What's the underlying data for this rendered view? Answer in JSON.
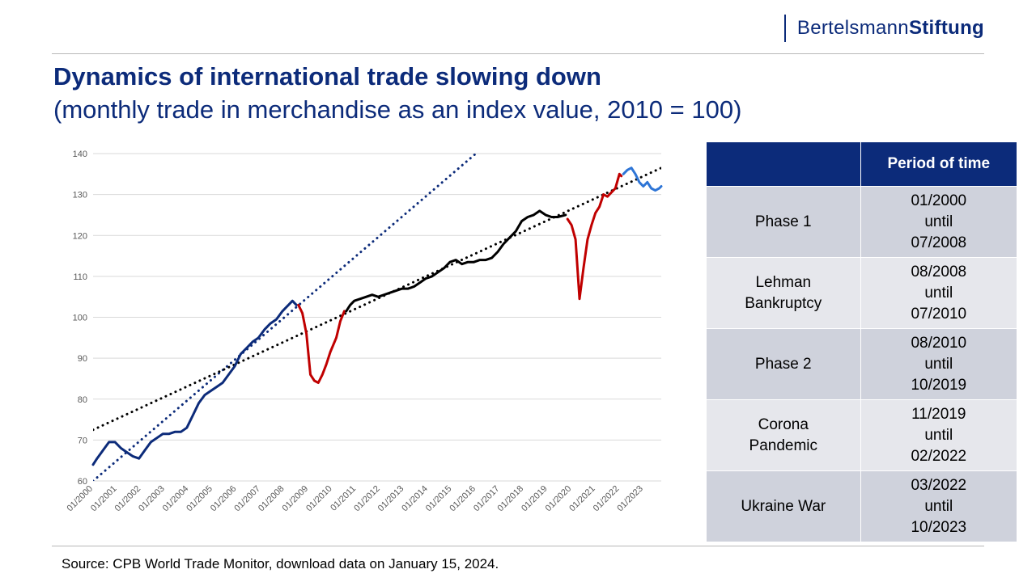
{
  "brand": {
    "part1": "Bertelsmann",
    "part2": "Stiftung"
  },
  "title": "Dynamics of international trade slowing down",
  "subtitle": "(monthly trade in merchandise as an index value, 2010 = 100)",
  "source": "Source: CPB World Trade Monitor, download data on January 15, 2024.",
  "table": {
    "header_blank": "",
    "header_period": "Period of time",
    "rows": [
      {
        "label": "Phase 1",
        "period_start": "01/2000",
        "until": "until",
        "period_end": "07/2008"
      },
      {
        "label": "Lehman Bankruptcy",
        "period_start": "08/2008",
        "until": "until",
        "period_end": "07/2010"
      },
      {
        "label": "Phase 2",
        "period_start": "08/2010",
        "until": "until",
        "period_end": "10/2019"
      },
      {
        "label": "Corona Pandemic",
        "period_start": "11/2019",
        "until": "until",
        "period_end": "02/2022"
      },
      {
        "label": "Ukraine War",
        "period_start": "03/2022",
        "until": "until",
        "period_end": "10/2023"
      }
    ]
  },
  "chart_data": {
    "type": "line",
    "title": "",
    "xlabel": "",
    "ylabel": "",
    "ylim": [
      60,
      140
    ],
    "yticks": [
      60,
      70,
      80,
      90,
      100,
      110,
      120,
      130,
      140
    ],
    "x_tick_labels": [
      "01/2000",
      "01/2001",
      "01/2002",
      "01/2003",
      "01/2004",
      "01/2005",
      "01/2006",
      "01/2007",
      "01/2008",
      "01/2009",
      "01/2010",
      "01/2011",
      "01/2012",
      "01/2013",
      "01/2014",
      "01/2015",
      "01/2016",
      "01/2017",
      "01/2018",
      "01/2019",
      "01/2020",
      "01/2021",
      "01/2022",
      "01/2023"
    ],
    "x_range": [
      "2000-01",
      "2023-10"
    ],
    "grid": true,
    "colors": {
      "phase1": "#0c2b7a",
      "lehman": "#c00000",
      "phase2": "#000000",
      "corona": "#c00000",
      "ukraine": "#2e75d6"
    },
    "series": [
      {
        "color_key": "phase1",
        "points": [
          [
            "2000-01",
            64
          ],
          [
            "2000-03",
            65.5
          ],
          [
            "2000-06",
            67.5
          ],
          [
            "2000-09",
            69.5
          ],
          [
            "2000-12",
            69.5
          ],
          [
            "2001-03",
            68
          ],
          [
            "2001-06",
            67
          ],
          [
            "2001-09",
            66
          ],
          [
            "2001-12",
            65.5
          ],
          [
            "2002-03",
            67.5
          ],
          [
            "2002-06",
            69.5
          ],
          [
            "2002-09",
            70.5
          ],
          [
            "2002-12",
            71.5
          ],
          [
            "2003-03",
            71.5
          ],
          [
            "2003-06",
            72
          ],
          [
            "2003-09",
            72
          ],
          [
            "2003-12",
            73
          ],
          [
            "2004-03",
            76
          ],
          [
            "2004-06",
            79
          ],
          [
            "2004-09",
            81
          ],
          [
            "2004-12",
            82
          ],
          [
            "2005-03",
            83
          ],
          [
            "2005-06",
            84
          ],
          [
            "2005-09",
            86
          ],
          [
            "2005-12",
            88
          ],
          [
            "2006-03",
            91
          ],
          [
            "2006-06",
            92.5
          ],
          [
            "2006-09",
            94
          ],
          [
            "2006-12",
            95
          ],
          [
            "2007-03",
            97
          ],
          [
            "2007-06",
            98.5
          ],
          [
            "2007-09",
            99.5
          ],
          [
            "2007-12",
            101.5
          ],
          [
            "2008-03",
            103
          ],
          [
            "2008-05",
            104
          ],
          [
            "2008-07",
            103
          ]
        ]
      },
      {
        "color_key": "lehman",
        "points": [
          [
            "2008-08",
            103
          ],
          [
            "2008-10",
            101
          ],
          [
            "2008-12",
            96
          ],
          [
            "2009-02",
            86
          ],
          [
            "2009-04",
            84.5
          ],
          [
            "2009-06",
            84
          ],
          [
            "2009-08",
            86
          ],
          [
            "2009-10",
            88.5
          ],
          [
            "2009-12",
            91.5
          ],
          [
            "2010-03",
            95
          ],
          [
            "2010-05",
            99
          ],
          [
            "2010-07",
            101.5
          ]
        ]
      },
      {
        "color_key": "phase2",
        "points": [
          [
            "2010-08",
            101.5
          ],
          [
            "2010-10",
            103
          ],
          [
            "2010-12",
            104
          ],
          [
            "2011-03",
            104.5
          ],
          [
            "2011-06",
            105
          ],
          [
            "2011-09",
            105.5
          ],
          [
            "2011-12",
            105
          ],
          [
            "2012-03",
            105.5
          ],
          [
            "2012-06",
            106
          ],
          [
            "2012-09",
            106.5
          ],
          [
            "2012-12",
            107
          ],
          [
            "2013-03",
            107
          ],
          [
            "2013-06",
            107.5
          ],
          [
            "2013-09",
            108.5
          ],
          [
            "2013-12",
            109.5
          ],
          [
            "2014-03",
            110
          ],
          [
            "2014-06",
            111
          ],
          [
            "2014-09",
            112
          ],
          [
            "2014-12",
            113.5
          ],
          [
            "2015-03",
            114
          ],
          [
            "2015-06",
            113
          ],
          [
            "2015-09",
            113.5
          ],
          [
            "2015-12",
            113.5
          ],
          [
            "2016-03",
            114
          ],
          [
            "2016-06",
            114
          ],
          [
            "2016-09",
            114.5
          ],
          [
            "2016-12",
            116
          ],
          [
            "2017-03",
            118
          ],
          [
            "2017-06",
            119.5
          ],
          [
            "2017-09",
            121
          ],
          [
            "2017-12",
            123.5
          ],
          [
            "2018-03",
            124.5
          ],
          [
            "2018-06",
            125
          ],
          [
            "2018-09",
            126
          ],
          [
            "2018-12",
            125
          ],
          [
            "2019-03",
            124.5
          ],
          [
            "2019-06",
            124.5
          ],
          [
            "2019-10",
            125
          ]
        ]
      },
      {
        "color_key": "corona",
        "points": [
          [
            "2019-11",
            124
          ],
          [
            "2020-01",
            122.5
          ],
          [
            "2020-03",
            119
          ],
          [
            "2020-05",
            104.5
          ],
          [
            "2020-07",
            112
          ],
          [
            "2020-09",
            119
          ],
          [
            "2020-11",
            122.5
          ],
          [
            "2021-01",
            125.5
          ],
          [
            "2021-03",
            127
          ],
          [
            "2021-05",
            130
          ],
          [
            "2021-07",
            129.5
          ],
          [
            "2021-09",
            130.5
          ],
          [
            "2021-11",
            131.5
          ],
          [
            "2022-01",
            135
          ],
          [
            "2022-02",
            134.5
          ]
        ]
      },
      {
        "color_key": "ukraine",
        "points": [
          [
            "2022-03",
            135
          ],
          [
            "2022-05",
            136
          ],
          [
            "2022-07",
            136.5
          ],
          [
            "2022-09",
            135
          ],
          [
            "2022-11",
            133
          ],
          [
            "2023-01",
            132
          ],
          [
            "2023-03",
            133
          ],
          [
            "2023-05",
            131.5
          ],
          [
            "2023-07",
            131
          ],
          [
            "2023-09",
            131.5
          ],
          [
            "2023-10",
            132
          ]
        ]
      }
    ],
    "trendlines": [
      {
        "color_key": "phase1",
        "from": [
          "2000-01",
          60
        ],
        "to": [
          "2016-01",
          140
        ]
      },
      {
        "color_key": "phase2",
        "from": [
          "2000-01",
          72.5
        ],
        "to": [
          "2023-10",
          136.5
        ]
      }
    ]
  }
}
